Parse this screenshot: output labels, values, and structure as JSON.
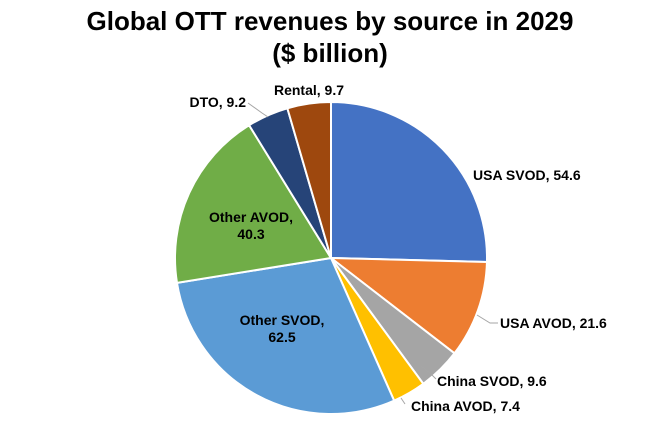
{
  "chart_data": {
    "type": "pie",
    "title": "Global OTT revenues by source in 2029",
    "subtitle": "($ billion)",
    "start_angle_deg": 0,
    "direction": "clockwise",
    "slices": [
      {
        "id": "usa-svod",
        "label": "USA SVOD",
        "value": 54.6,
        "color": "#4472C4",
        "label_text": "USA SVOD, 54.6"
      },
      {
        "id": "usa-avod",
        "label": "USA AVOD",
        "value": 21.6,
        "color": "#ED7D31",
        "label_text": "USA AVOD, 21.6"
      },
      {
        "id": "china-svod",
        "label": "China SVOD",
        "value": 9.6,
        "color": "#A5A5A5",
        "label_text": "China SVOD, 9.6"
      },
      {
        "id": "china-avod",
        "label": "China AVOD",
        "value": 7.4,
        "color": "#FFC000",
        "label_text": "China AVOD, 7.4"
      },
      {
        "id": "other-svod",
        "label": "Other SVOD",
        "value": 62.5,
        "color": "#5B9BD5",
        "label_lines": [
          "Other SVOD,",
          "62.5"
        ]
      },
      {
        "id": "other-avod",
        "label": "Other AVOD",
        "value": 40.3,
        "color": "#70AD47",
        "label_lines": [
          "Other AVOD,",
          "40.3"
        ]
      },
      {
        "id": "dto",
        "label": "DTO",
        "value": 9.2,
        "color": "#264478",
        "label_text": "DTO, 9.2"
      },
      {
        "id": "rental",
        "label": "Rental",
        "value": 9.7,
        "color": "#9E480E",
        "label_text": "Rental, 9.7"
      }
    ]
  }
}
